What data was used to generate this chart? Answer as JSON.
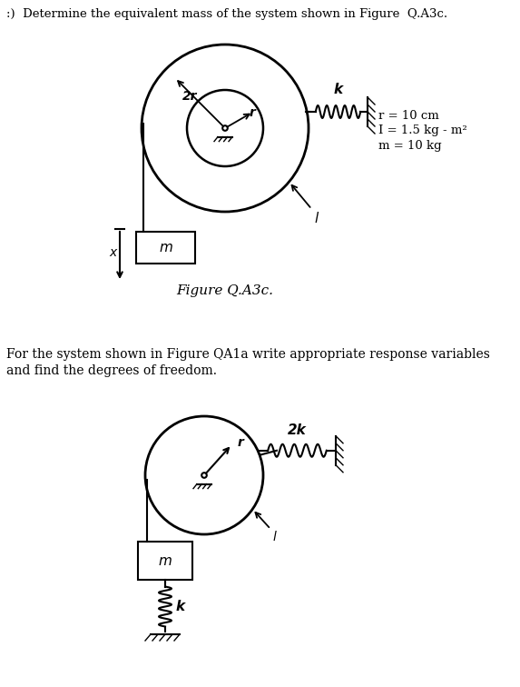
{
  "title1": ":)  Determine the equivalent mass of the system shown in Figure  Q.A3c.",
  "title2": "For the system shown in Figure QA1a write appropriate response variables",
  "title2b": "and find the degrees of freedom.",
  "fig_label1": "Figure Q.A3c.",
  "bg_color": "#ffffff",
  "text_color": "#000000",
  "line_color": "#000000"
}
